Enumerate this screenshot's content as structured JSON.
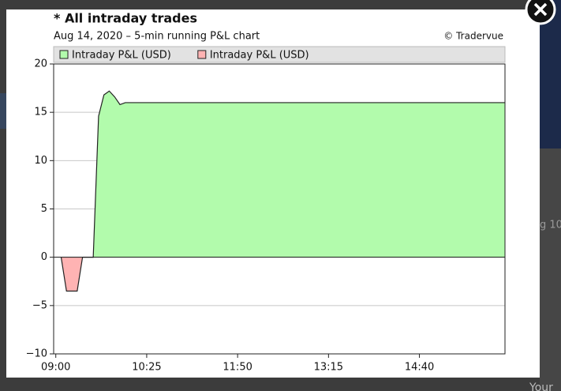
{
  "background_texts": [
    "g 10",
    "Your"
  ],
  "chart_data": {
    "type": "area",
    "title": "* All intraday trades",
    "subtitle": "Aug 14, 2020 – 5-min running P&L chart",
    "credit": "© Tradervue",
    "x": [
      545,
      550,
      555,
      560,
      565,
      570,
      575,
      580,
      585,
      590,
      595,
      600,
      605,
      960
    ],
    "series": [
      {
        "name": "Intraday P&L (USD)",
        "color": "#b2fbac",
        "values": [
          null,
          null,
          null,
          null,
          0,
          0,
          0,
          14.6,
          16.8,
          17.2,
          16.6,
          15.8,
          16,
          16
        ]
      },
      {
        "name": "Intraday P&L (USD)",
        "color": "#ffb3b3",
        "values": [
          0,
          -3.5,
          -3.5,
          -3.5,
          0,
          null,
          null,
          null,
          null,
          null,
          null,
          null,
          null,
          null
        ]
      }
    ],
    "xlim": [
      538,
      960
    ],
    "xticks": [
      {
        "value": 540,
        "label": "09:00"
      },
      {
        "value": 625,
        "label": "10:25"
      },
      {
        "value": 710,
        "label": "11:50"
      },
      {
        "value": 795,
        "label": "13:15"
      },
      {
        "value": 880,
        "label": "14:40"
      }
    ],
    "ylim": [
      -10,
      20
    ],
    "yticks": [
      {
        "value": -10,
        "label": "−10"
      },
      {
        "value": -5,
        "label": "−5"
      },
      0,
      5,
      10,
      15,
      20
    ],
    "grid": true,
    "legend": "top"
  }
}
